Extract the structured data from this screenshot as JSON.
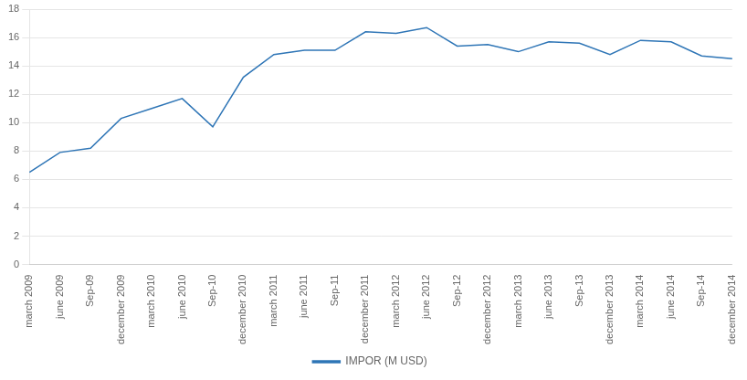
{
  "chart_data": {
    "type": "line",
    "categories": [
      "march 2009",
      "june 2009",
      "Sep-09",
      "december 2009",
      "march 2010",
      "june 2010",
      "Sep-10",
      "december 2010",
      "march 2011",
      "june 2011",
      "Sep-11",
      "december 2011",
      "march 2012",
      "june 2012",
      "Sep-12",
      "december 2012",
      "march 2013",
      "june 2013",
      "Sep-13",
      "december 2013",
      "march 2014",
      "june 2014",
      "Sep-14",
      "december 2014"
    ],
    "series": [
      {
        "name": "IMPOR (M USD)",
        "color": "#2E75B6",
        "values": [
          6.5,
          7.9,
          8.2,
          10.3,
          11.0,
          11.7,
          9.7,
          13.2,
          14.8,
          15.1,
          15.1,
          16.4,
          16.3,
          16.7,
          15.4,
          15.5,
          15.0,
          15.7,
          15.6,
          14.8,
          15.8,
          15.7,
          14.7,
          14.5
        ]
      }
    ],
    "ylim": [
      0,
      18
    ],
    "yticks": [
      0,
      2,
      4,
      6,
      8,
      10,
      12,
      14,
      16,
      18
    ],
    "grid": "y",
    "legend": "bottom"
  }
}
